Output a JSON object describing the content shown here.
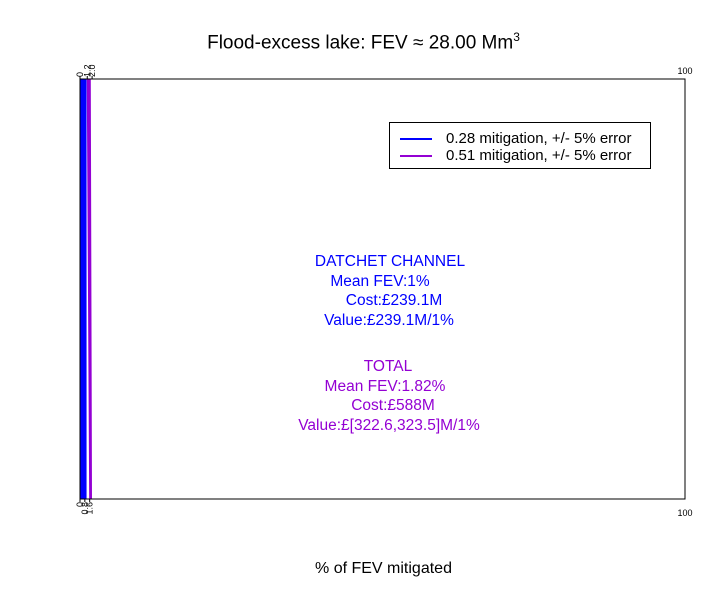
{
  "title": "Flood-excess lake: FEV ≈ 28.00 Mm",
  "title_sup": "3",
  "chart_data": {
    "type": "bar",
    "title": "Flood-excess lake: FEV ≈ 28.00 Mm3",
    "xlabel": "% of FEV mitigated",
    "ylabel": "",
    "xlim": [
      0,
      100
    ],
    "top_ticks": [
      "0",
      "1.2",
      "2.0"
    ],
    "top_tick_values": [
      0,
      1.2,
      2.0
    ],
    "top_end_label": "100",
    "bottom_ticks": [
      "0",
      "0.8",
      "1.6"
    ],
    "bottom_tick_values": [
      0,
      0.8,
      1.6
    ],
    "bottom_end_label": "100",
    "series": [
      {
        "name": "0.28 mitigation, +/- 5% error",
        "color": "#0000ff",
        "bottom_range": [
          0,
          1.0
        ],
        "top_range": [
          0,
          1.0
        ]
      },
      {
        "name": "0.51 mitigation, +/- 5% error",
        "color": "#9400d3",
        "bottom_range": [
          1.6,
          1.9
        ],
        "top_range": [
          1.2,
          1.7
        ]
      }
    ],
    "legend_position": "top-right",
    "grid": false
  },
  "annotations": {
    "datchet": {
      "color": "#0000ff",
      "lines": [
        "DATCHET CHANNEL",
        "Mean FEV:1%",
        "Cost:£239.1M",
        "Value:£239.1M/1%"
      ]
    },
    "total": {
      "color": "#9400d3",
      "lines": [
        "TOTAL",
        "Mean FEV:1.82%",
        "Cost:£588M",
        "Value:£[322.6,323.5]M/1%"
      ]
    }
  }
}
